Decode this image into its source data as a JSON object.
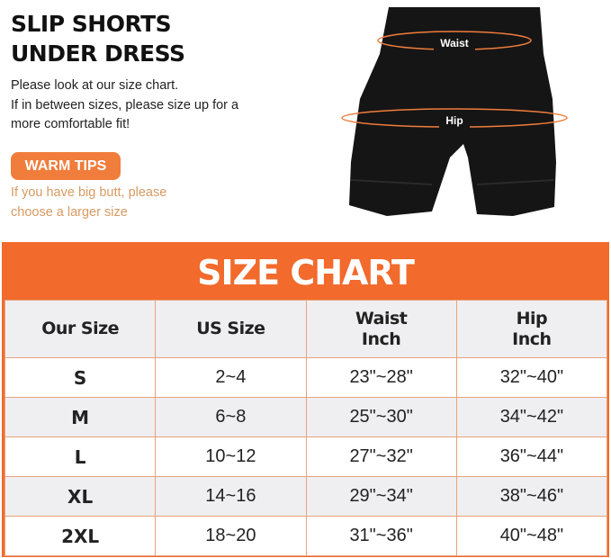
{
  "header": {
    "title_line1": "SLIP SHORTS",
    "title_line2": "UNDER DRESS",
    "desc_line1": "Please look at our size chart.",
    "desc_line2": "If in between sizes, please size up for a",
    "desc_line3": "more comfortable fit!"
  },
  "tips": {
    "label": "WARM TIPS",
    "line1": "If you have big butt, please",
    "line2": "choose a larger size"
  },
  "product": {
    "waist_label": "Waist",
    "hip_label": "Hip"
  },
  "size_chart": {
    "title": "SIZE CHART",
    "headers": [
      {
        "line1": "Our Size",
        "line2": ""
      },
      {
        "line1": "US Size",
        "line2": ""
      },
      {
        "line1": "Waist",
        "line2": "Inch"
      },
      {
        "line1": "Hip",
        "line2": "Inch"
      }
    ],
    "rows": [
      [
        "S",
        "2~4",
        "23\"~28\"",
        "32\"~40\""
      ],
      [
        "M",
        "6~8",
        "25\"~30\"",
        "34\"~42\""
      ],
      [
        "L",
        "10~12",
        "27\"~32\"",
        "36\"~44\""
      ],
      [
        "XL",
        "14~16",
        "29\"~34\"",
        "38\"~46\""
      ],
      [
        "2XL",
        "18~20",
        "31\"~36\"",
        "40\"~48\""
      ]
    ]
  },
  "colors": {
    "accent": "#f26a2c",
    "tips_text": "#d89a62"
  }
}
